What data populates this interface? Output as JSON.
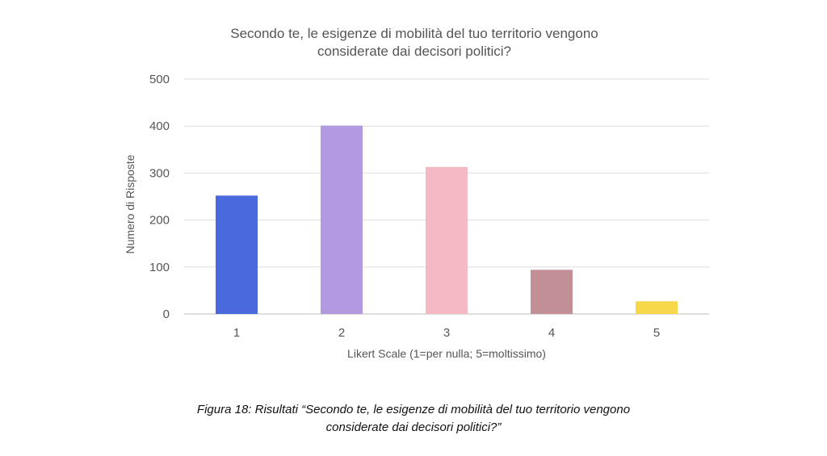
{
  "chart_data": {
    "type": "bar",
    "title_lines": [
      "Secondo te, le esigenze di mobilità del tuo territorio vengono",
      "considerate dai decisori politici?"
    ],
    "categories": [
      "1",
      "2",
      "3",
      "4",
      "5"
    ],
    "values": [
      252,
      401,
      313,
      94,
      27
    ],
    "colors": [
      "#4a69dd",
      "#b399df",
      "#f5b9c3",
      "#c38f97",
      "#f8d84b"
    ],
    "xlabel": "Likert Scale (1=per nulla; 5=moltissimo)",
    "ylabel": "Numero di Risposte",
    "ylim": [
      0,
      500
    ],
    "yticks": [
      "0",
      "100",
      "200",
      "300",
      "400",
      "500"
    ],
    "grid": true,
    "legend": "none"
  },
  "caption": {
    "line1": "Figura 18: Risultati “Secondo te, le esigenze di mobilità del tuo territorio vengono",
    "line2": "considerate dai decisori politici?”"
  }
}
